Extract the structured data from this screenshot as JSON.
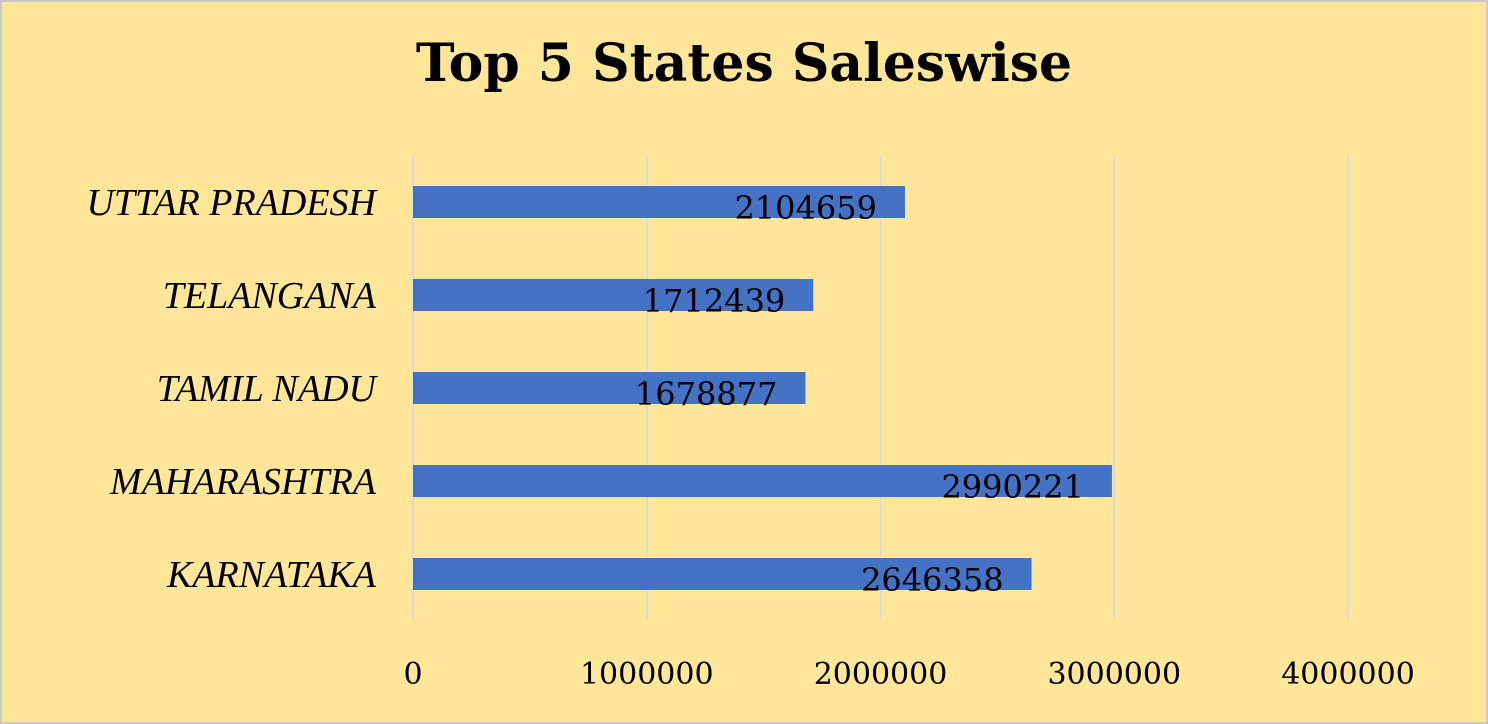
{
  "chart_data": {
    "type": "bar",
    "orientation": "horizontal",
    "title": "Top 5 States Saleswise",
    "categories": [
      "UTTAR PRADESH",
      "TELANGANA",
      "TAMIL NADU",
      "MAHARASHTRA",
      "KARNATAKA"
    ],
    "values": [
      2104659,
      1712439,
      1678877,
      2990221,
      2646358
    ],
    "xlim": [
      0,
      4000000
    ],
    "xticks": [
      0,
      1000000,
      2000000,
      3000000,
      4000000
    ],
    "xtick_labels": [
      "0",
      "1000000",
      "2000000",
      "3000000",
      "4000000"
    ],
    "data_labels": [
      "2104659",
      "1712439",
      "1678877",
      "2990221",
      "2646358"
    ],
    "grid": "vertical",
    "legend": "none",
    "colors": {
      "bar": "#4472c4",
      "background": "#ffe699",
      "grid": "#d9d9d9"
    }
  }
}
